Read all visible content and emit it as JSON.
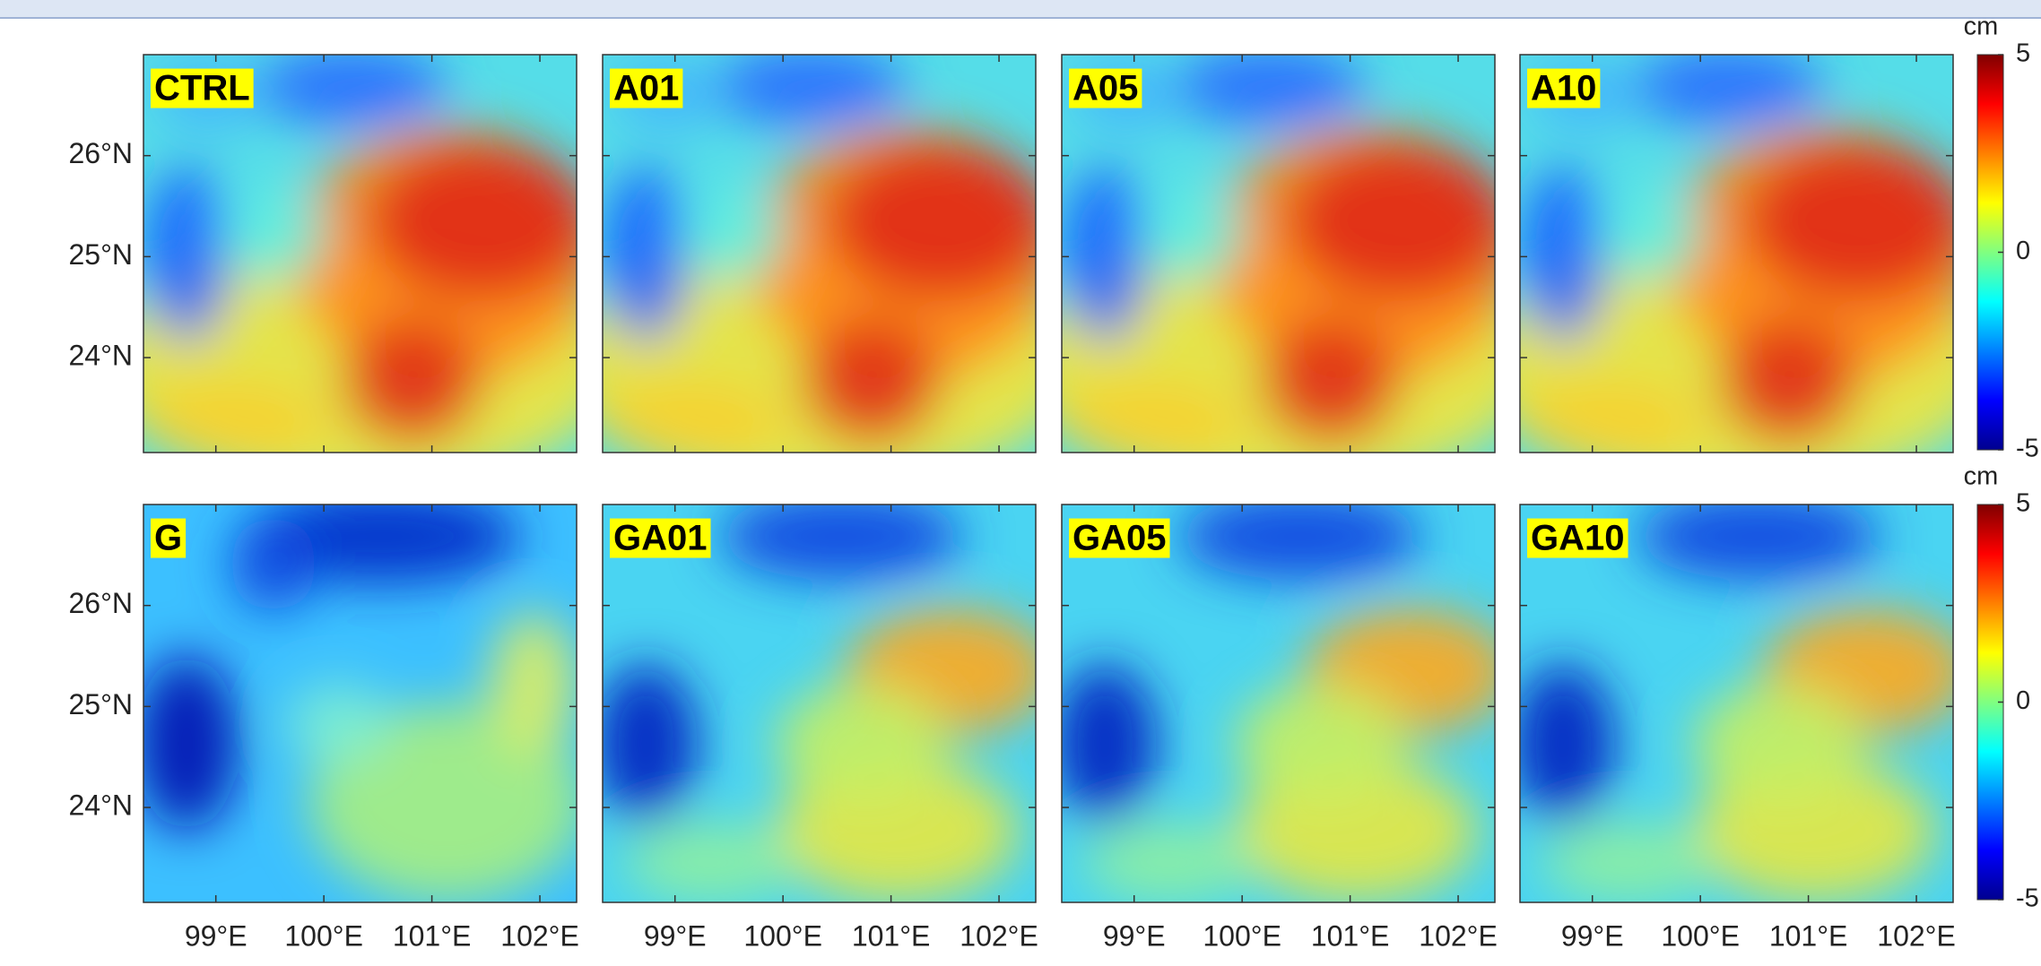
{
  "panels": [
    {
      "label": "CTRL"
    },
    {
      "label": "A01"
    },
    {
      "label": "A05"
    },
    {
      "label": "A10"
    },
    {
      "label": "G"
    },
    {
      "label": "GA01"
    },
    {
      "label": "GA05"
    },
    {
      "label": "GA10"
    }
  ],
  "map": {
    "xlim": [
      98.33,
      102.34
    ],
    "ylim": [
      23.06,
      27
    ],
    "xticks": [
      {
        "value": 99,
        "label": "99°E"
      },
      {
        "value": 100,
        "label": "100°E"
      },
      {
        "value": 101,
        "label": "101°E"
      },
      {
        "value": 102,
        "label": "102°E"
      }
    ],
    "yticks": [
      {
        "value": 24,
        "label": "24°N"
      },
      {
        "value": 25,
        "label": "25°N"
      },
      {
        "value": 26,
        "label": "26°N"
      }
    ]
  },
  "colorbars": [
    {
      "unit": "cm",
      "lim": [
        -5,
        5
      ],
      "ticks": [
        5,
        0,
        -5
      ]
    },
    {
      "unit": "cm",
      "lim": [
        -5,
        5
      ],
      "ticks": [
        5,
        0,
        -5
      ]
    }
  ]
}
